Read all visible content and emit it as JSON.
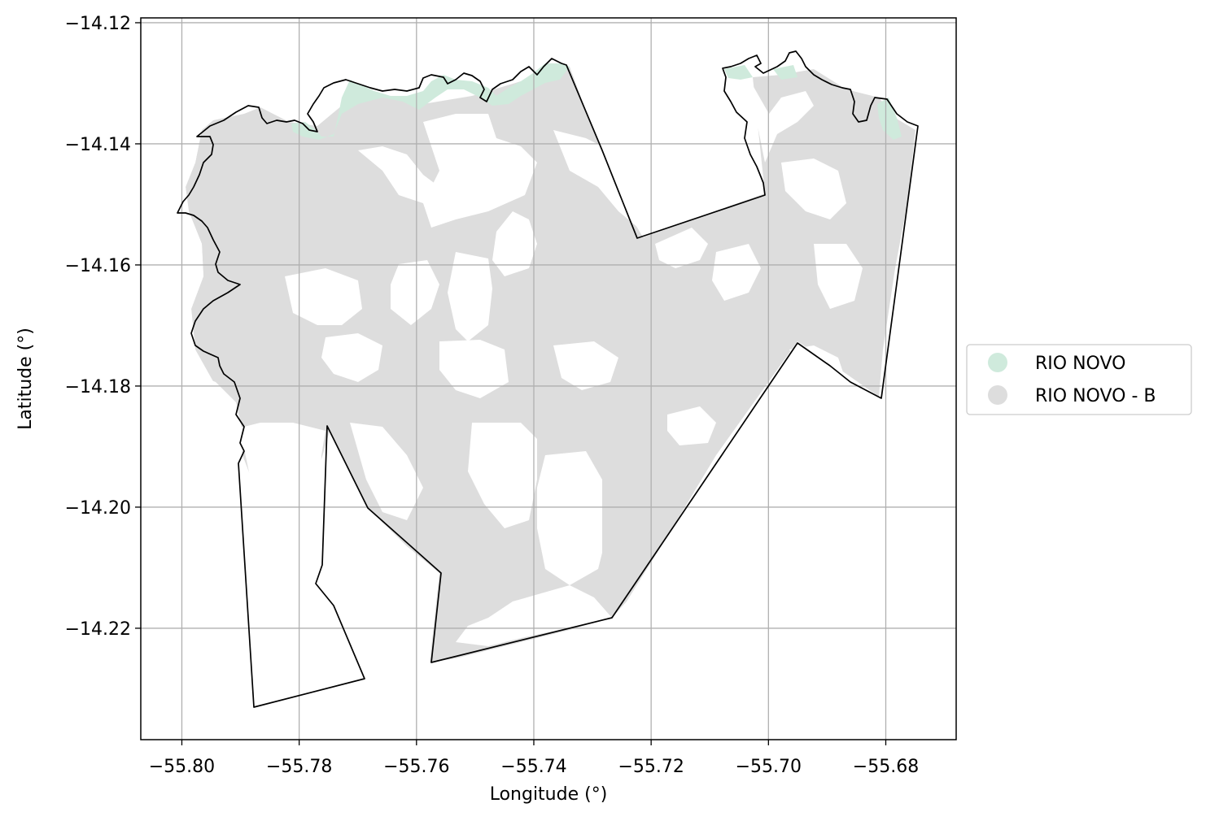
{
  "chart_data": {
    "type": "map",
    "xlabel": "Longitude (°)",
    "ylabel": "Latitude (°)",
    "xlim": [
      -55.807,
      -55.668
    ],
    "ylim": [
      -14.2384,
      -14.1192
    ],
    "xticks": [
      -55.8,
      -55.78,
      -55.76,
      -55.74,
      -55.72,
      -55.7,
      -55.68
    ],
    "yticks": [
      -14.12,
      -14.14,
      -14.16,
      -14.18,
      -14.2,
      -14.22
    ],
    "xtick_labels": [
      "−55.80",
      "−55.78",
      "−55.76",
      "−55.74",
      "−55.72",
      "−55.70",
      "−55.68"
    ],
    "ytick_labels": [
      "−14.12",
      "−14.14",
      "−14.16",
      "−14.18",
      "−14.20",
      "−14.22"
    ],
    "grid": true,
    "legend_position": "right",
    "series": [
      {
        "name": "RIO NOVO",
        "color": "#cfeadc"
      },
      {
        "name": "RIO NOVO - B",
        "color": "#dddddd"
      }
    ],
    "boundary_color": "#000000"
  }
}
